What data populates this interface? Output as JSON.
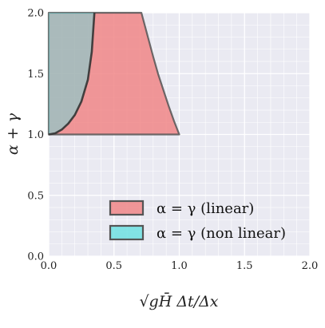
{
  "chart_data": {
    "type": "area",
    "xlim": [
      0.0,
      2.0
    ],
    "ylim": [
      0.0,
      2.0
    ],
    "x_ticks": [
      "0.0",
      "0.5",
      "1.0",
      "1.5",
      "2.0"
    ],
    "y_ticks": [
      "0.0",
      "0.5",
      "1.0",
      "1.5",
      "2.0"
    ],
    "grid": true,
    "minor_grid": true,
    "xlabel": "√gH̄ Δt/Δx",
    "ylabel": "α + γ",
    "legend_position": "lower-right",
    "series": [
      {
        "name": "α = γ (linear)",
        "color": "#f08080",
        "baseline": 1.0,
        "lower_edge_x": [
          0.0,
          0.0
        ],
        "lower_edge_y": [
          1.0,
          2.0
        ],
        "upper_edge_x": [
          0.71,
          0.76,
          0.8,
          0.84,
          0.88,
          0.92,
          0.96,
          1.0
        ],
        "upper_edge_y": [
          2.0,
          1.8,
          1.64,
          1.49,
          1.36,
          1.23,
          1.11,
          1.0
        ]
      },
      {
        "name": "α = γ (non linear)",
        "color": "#66e0e0",
        "baseline": 1.0,
        "upper_edge_x": [
          0.0,
          0.05,
          0.1,
          0.15,
          0.2,
          0.25,
          0.3,
          0.33,
          0.35
        ],
        "upper_edge_y": [
          1.0,
          1.01,
          1.04,
          1.09,
          1.16,
          1.27,
          1.45,
          1.68,
          2.0
        ]
      }
    ]
  }
}
